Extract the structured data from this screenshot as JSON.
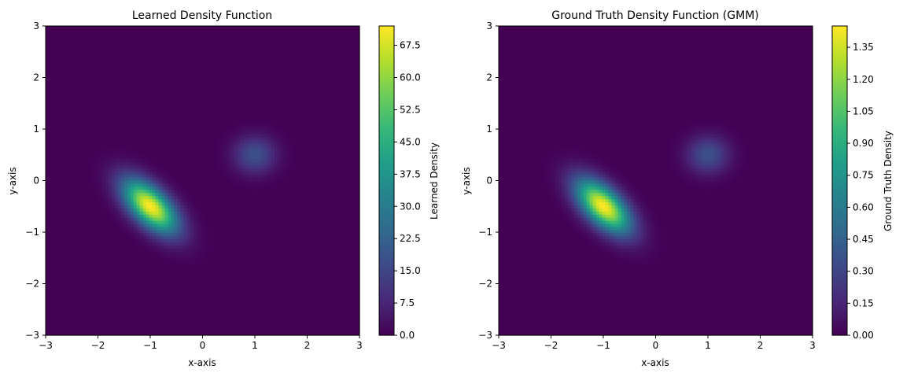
{
  "chart_data": [
    {
      "type": "heatmap",
      "title": "Learned Density Function",
      "xlabel": "x-axis",
      "ylabel": "y-axis",
      "xlim": [
        -3,
        3
      ],
      "ylim": [
        -3,
        3
      ],
      "xticks": [
        -3,
        -2,
        -1,
        0,
        1,
        2,
        3
      ],
      "yticks": [
        -3,
        -2,
        -1,
        0,
        1,
        2,
        3
      ],
      "colormap": "viridis",
      "colorbar": {
        "label": "Learned Density",
        "min": 0.0,
        "max": 72.0,
        "ticks": [
          "0.0",
          "7.5",
          "15.0",
          "22.5",
          "30.0",
          "37.5",
          "45.0",
          "52.5",
          "60.0",
          "67.5"
        ]
      },
      "components": [
        {
          "mean": [
            -1.0,
            -0.5
          ],
          "sx": 0.36,
          "sy": 0.36,
          "rho": -0.6,
          "peak": 72.0
        },
        {
          "mean": [
            1.0,
            0.5
          ],
          "sx": 0.28,
          "sy": 0.25,
          "rho": 0.0,
          "peak": 18.0
        }
      ]
    },
    {
      "type": "heatmap",
      "title": "Ground Truth Density Function (GMM)",
      "xlabel": "x-axis",
      "ylabel": "y-axis",
      "xlim": [
        -3,
        3
      ],
      "ylim": [
        -3,
        3
      ],
      "xticks": [
        -3,
        -2,
        -1,
        0,
        1,
        2,
        3
      ],
      "yticks": [
        -3,
        -2,
        -1,
        0,
        1,
        2,
        3
      ],
      "colormap": "viridis",
      "colorbar": {
        "label": "Ground Truth Density",
        "min": 0.0,
        "max": 1.45,
        "ticks": [
          "0.00",
          "0.15",
          "0.30",
          "0.45",
          "0.60",
          "0.75",
          "0.90",
          "1.05",
          "1.20",
          "1.35"
        ]
      },
      "components": [
        {
          "mean": [
            -1.0,
            -0.5
          ],
          "sx": 0.36,
          "sy": 0.36,
          "rho": -0.6,
          "peak": 1.45
        },
        {
          "mean": [
            1.0,
            0.5
          ],
          "sx": 0.28,
          "sy": 0.25,
          "rho": 0.0,
          "peak": 0.36
        }
      ]
    }
  ]
}
